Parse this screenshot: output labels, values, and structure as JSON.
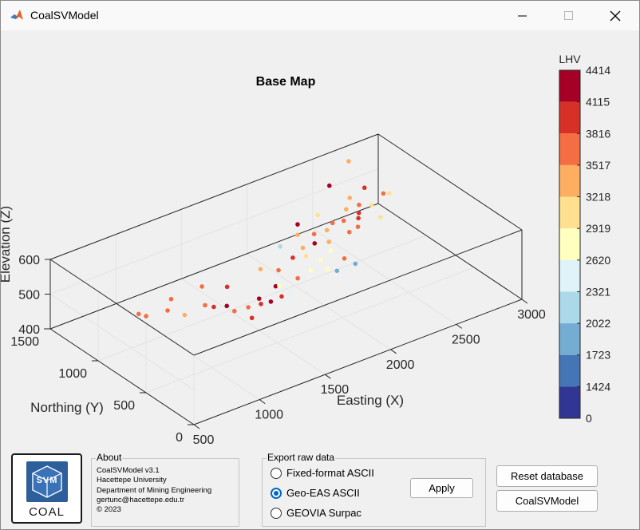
{
  "window": {
    "title": "CoalSVModel"
  },
  "plot": {
    "title": "Base Map",
    "xlabel": "Easting (X)",
    "ylabel": "Northing (Y)",
    "zlabel": "Elevation (Z)",
    "x_ticks": [
      "500",
      "1000",
      "1500",
      "2000",
      "2500",
      "3000"
    ],
    "y_ticks": [
      "0",
      "500",
      "1000",
      "1500"
    ],
    "z_ticks": [
      "400",
      "500",
      "600"
    ]
  },
  "colorbar": {
    "label": "LHV",
    "ticks": [
      "4414",
      "4115",
      "3816",
      "3517",
      "3218",
      "2919",
      "2620",
      "2321",
      "2022",
      "1723",
      "1424",
      "0"
    ],
    "colors": [
      "#a50026",
      "#d73027",
      "#f46d43",
      "#fdae61",
      "#fee090",
      "#ffffbf",
      "#e0f3f8",
      "#abd9e9",
      "#74add1",
      "#4575b4",
      "#313695"
    ]
  },
  "about": {
    "title": "About",
    "lines": [
      "CoalSVModel v3.1",
      "Hacettepe University",
      "Department of Mining Engineering",
      "gertunc@hacettepe.edu.tr",
      "© 2023"
    ]
  },
  "export": {
    "title": "Export raw data",
    "options": [
      {
        "label": "Fixed-format ASCII",
        "selected": false
      },
      {
        "label": "Geo-EAS ASCII",
        "selected": true
      },
      {
        "label": "GEOVIA Surpac",
        "selected": false
      }
    ],
    "apply_label": "Apply"
  },
  "buttons": {
    "reset_label": "Reset database",
    "model_label": "CoalSVModel"
  },
  "logo": {
    "text": "COAL",
    "mark": "SVM"
  },
  "chart_data": {
    "type": "scatter",
    "title": "Base Map",
    "xlabel": "Easting (X)",
    "ylabel": "Northing (Y)",
    "zlabel": "Elevation (Z)",
    "xlim": [
      500,
      3000
    ],
    "ylim": [
      0,
      1500
    ],
    "zlim": [
      400,
      600
    ],
    "color_label": "LHV",
    "points": [
      {
        "x": 880,
        "y": 1020,
        "z": 470,
        "c": 3300
      },
      {
        "x": 860,
        "y": 1070,
        "z": 470,
        "c": 3400
      },
      {
        "x": 1000,
        "y": 960,
        "z": 480,
        "c": 3500
      },
      {
        "x": 1050,
        "y": 850,
        "z": 480,
        "c": 3000
      },
      {
        "x": 1100,
        "y": 1060,
        "z": 480,
        "c": 3500
      },
      {
        "x": 1220,
        "y": 870,
        "z": 480,
        "c": 3600
      },
      {
        "x": 1240,
        "y": 930,
        "z": 520,
        "c": 3300
      },
      {
        "x": 1250,
        "y": 820,
        "z": 480,
        "c": 3900
      },
      {
        "x": 1320,
        "y": 700,
        "z": 480,
        "c": 3400
      },
      {
        "x": 1320,
        "y": 780,
        "z": 480,
        "c": 4300
      },
      {
        "x": 1380,
        "y": 600,
        "z": 470,
        "c": 3900
      },
      {
        "x": 1410,
        "y": 900,
        "z": 500,
        "c": 3700
      },
      {
        "x": 1440,
        "y": 720,
        "z": 470,
        "c": 3600
      },
      {
        "x": 1500,
        "y": 670,
        "z": 480,
        "c": 4000
      },
      {
        "x": 1530,
        "y": 730,
        "z": 480,
        "c": 4400
      },
      {
        "x": 1590,
        "y": 690,
        "z": 470,
        "c": 4100
      },
      {
        "x": 1650,
        "y": 880,
        "z": 520,
        "c": 3000
      },
      {
        "x": 1680,
        "y": 700,
        "z": 470,
        "c": 3900
      },
      {
        "x": 1700,
        "y": 790,
        "z": 480,
        "c": 4300
      },
      {
        "x": 1720,
        "y": 780,
        "z": 480,
        "c": 2300
      },
      {
        "x": 1740,
        "y": 700,
        "z": 470,
        "c": 2000
      },
      {
        "x": 1780,
        "y": 870,
        "z": 500,
        "c": 3300
      },
      {
        "x": 1890,
        "y": 820,
        "z": 470,
        "c": 3500
      },
      {
        "x": 1910,
        "y": 1030,
        "z": 520,
        "c": 1600
      },
      {
        "x": 1940,
        "y": 940,
        "z": 500,
        "c": 3900
      },
      {
        "x": 2010,
        "y": 850,
        "z": 470,
        "c": 2200
      },
      {
        "x": 2040,
        "y": 940,
        "z": 490,
        "c": 2600
      },
      {
        "x": 2060,
        "y": 1000,
        "z": 500,
        "c": 3100
      },
      {
        "x": 2080,
        "y": 1080,
        "z": 520,
        "c": 2900
      },
      {
        "x": 2100,
        "y": 800,
        "z": 470,
        "c": 2400
      },
      {
        "x": 2110,
        "y": 880,
        "z": 480,
        "c": 2100
      },
      {
        "x": 2130,
        "y": 1150,
        "z": 530,
        "c": 4400
      },
      {
        "x": 2150,
        "y": 1000,
        "z": 500,
        "c": 4200
      },
      {
        "x": 2160,
        "y": 780,
        "z": 460,
        "c": 1200
      },
      {
        "x": 2190,
        "y": 1060,
        "z": 510,
        "c": 3500
      },
      {
        "x": 2200,
        "y": 900,
        "z": 490,
        "c": 2400
      },
      {
        "x": 2230,
        "y": 960,
        "z": 500,
        "c": 3000
      },
      {
        "x": 2260,
        "y": 840,
        "z": 470,
        "c": 3500
      },
      {
        "x": 2280,
        "y": 1050,
        "z": 510,
        "c": 3000
      },
      {
        "x": 2300,
        "y": 780,
        "z": 460,
        "c": 900
      },
      {
        "x": 2320,
        "y": 1200,
        "z": 520,
        "c": 2700
      },
      {
        "x": 2360,
        "y": 1100,
        "z": 510,
        "c": 3300
      },
      {
        "x": 2400,
        "y": 980,
        "z": 500,
        "c": 3500
      },
      {
        "x": 2430,
        "y": 1080,
        "z": 510,
        "c": 3600
      },
      {
        "x": 2480,
        "y": 1000,
        "z": 500,
        "c": 3400
      },
      {
        "x": 2500,
        "y": 1150,
        "z": 520,
        "c": 3100
      },
      {
        "x": 2520,
        "y": 1050,
        "z": 510,
        "c": 3700
      },
      {
        "x": 2540,
        "y": 1380,
        "z": 540,
        "c": 4300
      },
      {
        "x": 2560,
        "y": 1100,
        "z": 510,
        "c": 3800
      },
      {
        "x": 2600,
        "y": 1250,
        "z": 520,
        "c": 2900
      },
      {
        "x": 2620,
        "y": 1180,
        "z": 510,
        "c": 3500
      },
      {
        "x": 2660,
        "y": 1010,
        "z": 500,
        "c": 2800
      },
      {
        "x": 2680,
        "y": 1130,
        "z": 510,
        "c": 2600
      },
      {
        "x": 2720,
        "y": 1260,
        "z": 530,
        "c": 3700
      },
      {
        "x": 2760,
        "y": 1480,
        "z": 560,
        "c": 2900
      },
      {
        "x": 2820,
        "y": 1200,
        "z": 510,
        "c": 3500
      },
      {
        "x": 2850,
        "y": 1180,
        "z": 510,
        "c": 2500
      }
    ]
  }
}
